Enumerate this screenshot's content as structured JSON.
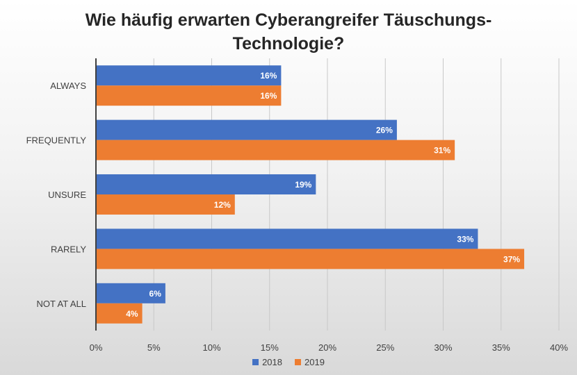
{
  "chart_data": {
    "type": "bar",
    "orientation": "horizontal",
    "title_lines": [
      "Wie häufig erwarten Cyberangreifer Täuschungs-",
      "Technologie?"
    ],
    "categories": [
      "ALWAYS",
      "FREQUENTLY",
      "UNSURE",
      "RARELY",
      "NOT AT ALL"
    ],
    "series": [
      {
        "name": "2018",
        "values": [
          16,
          26,
          19,
          33,
          6
        ],
        "labels": [
          "16%",
          "26%",
          "19%",
          "33%",
          "6%"
        ],
        "color": "#4472c4"
      },
      {
        "name": "2019",
        "values": [
          16,
          31,
          12,
          37,
          4
        ],
        "labels": [
          "16%",
          "31%",
          "12%",
          "37%",
          "4%"
        ],
        "color": "#ed7d31"
      }
    ],
    "xlim": [
      0,
      40
    ],
    "xticks": [
      0,
      5,
      10,
      15,
      20,
      25,
      30,
      35,
      40
    ],
    "xtick_labels": [
      "0%",
      "5%",
      "10%",
      "15%",
      "20%",
      "25%",
      "30%",
      "35%",
      "40%"
    ],
    "grid": true,
    "legend_position": "bottom"
  }
}
